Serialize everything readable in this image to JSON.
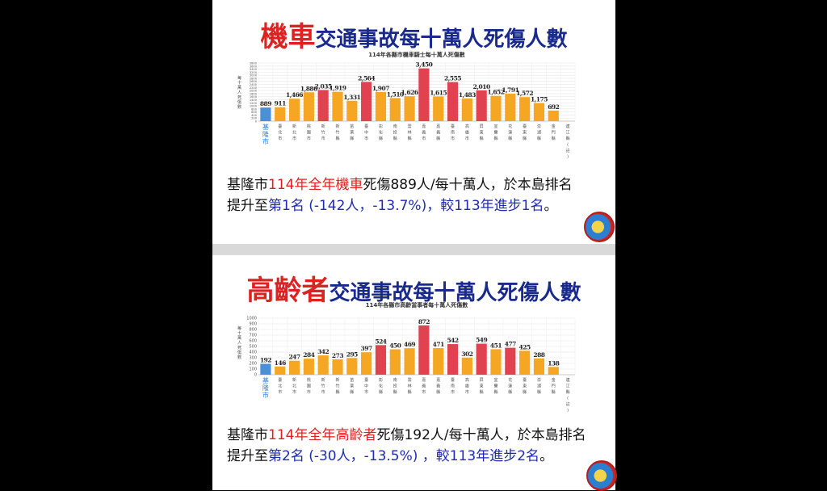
{
  "slides": [
    {
      "title_highlight": "機車",
      "title_rest": "交通事故每十萬人死傷人數",
      "summary_line1": {
        "a": "基隆市",
        "b": "114年全年機車",
        "c": "死傷889人/每十萬人，於本島排名"
      },
      "summary_line2": {
        "a": "提升至",
        "b": "第1名 (-142人，-13.7%)，較113年進步1名",
        "c": "。"
      }
    },
    {
      "title_highlight": "高齡者",
      "title_rest": "交通事故每十萬人死傷人數",
      "summary_line1": {
        "a": "基隆市",
        "b": "114年全年高齡者",
        "c": "死傷192人/每十萬人，於本島排名"
      },
      "summary_line2": {
        "a": "提升至",
        "b": "第2名 (-30人，-13.5%) ，較113年進步2名",
        "c": "。"
      }
    }
  ],
  "colors": {
    "keelung": "#4a90d9",
    "normal": "#f5a623",
    "highlight": "#e0434f"
  },
  "chart_data": [
    {
      "type": "bar",
      "title": "114年各縣市機車騎士每十萬人死傷數",
      "ylabel": "每十萬人死傷數",
      "ylim": [
        0,
        3800
      ],
      "ytick_step": 200,
      "grid": true,
      "categories": [
        "基隆市",
        "臺北市",
        "新北市",
        "桃園市",
        "新竹市",
        "新竹縣",
        "苗栗縣",
        "臺中市",
        "彰化縣",
        "南投縣",
        "雲林縣",
        "嘉義市",
        "嘉義縣",
        "臺南市",
        "高雄市",
        "屏東縣",
        "宜蘭縣",
        "花蓮縣",
        "臺東縣",
        "澎湖縣",
        "金門縣",
        "連江縣(註)"
      ],
      "values": [
        889,
        911,
        1466,
        1886,
        2035,
        1919,
        1331,
        2564,
        1907,
        1510,
        1626,
        3450,
        1615,
        2555,
        1483,
        2010,
        1652,
        1791,
        1572,
        1175,
        692,
        null
      ],
      "value_labels": [
        "889",
        "911",
        "1,466",
        "1,886",
        "2,035",
        "1,919",
        "1,331",
        "2,564",
        "1,907",
        "1,510",
        "1,626",
        "3,450",
        "1,615",
        "2,555",
        "1,483",
        "2,010",
        "1,652",
        "1,791",
        "1,572",
        "1,175",
        "692",
        ""
      ],
      "highlight": [
        "keelung",
        "normal",
        "normal",
        "normal",
        "highlight",
        "normal",
        "normal",
        "highlight",
        "normal",
        "normal",
        "normal",
        "highlight",
        "normal",
        "highlight",
        "normal",
        "highlight",
        "normal",
        "normal",
        "normal",
        "normal",
        "normal",
        "normal"
      ]
    },
    {
      "type": "bar",
      "title": "114年各縣市高齡當事者每十萬人死傷數",
      "ylabel": "每十萬人死傷數",
      "ylim": [
        0,
        1000
      ],
      "ytick_step": 100,
      "grid": true,
      "categories": [
        "基隆市",
        "臺北市",
        "新北市",
        "桃園市",
        "新竹市",
        "新竹縣",
        "苗栗縣",
        "臺中市",
        "彰化縣",
        "南投縣",
        "雲林縣",
        "嘉義市",
        "嘉義縣",
        "臺南市",
        "高雄市",
        "屏東縣",
        "宜蘭縣",
        "花蓮縣",
        "臺東縣",
        "澎湖縣",
        "金門縣",
        "連江縣(註)"
      ],
      "values": [
        192,
        146,
        247,
        284,
        342,
        273,
        295,
        397,
        524,
        450,
        469,
        872,
        471,
        542,
        302,
        549,
        451,
        477,
        425,
        288,
        138,
        null
      ],
      "value_labels": [
        "192",
        "146",
        "247",
        "284",
        "342",
        "273",
        "295",
        "397",
        "524",
        "450",
        "469",
        "872",
        "471",
        "542",
        "302",
        "549",
        "451",
        "477",
        "425",
        "288",
        "138",
        ""
      ],
      "highlight": [
        "keelung",
        "normal",
        "normal",
        "normal",
        "normal",
        "normal",
        "normal",
        "normal",
        "highlight",
        "normal",
        "normal",
        "highlight",
        "normal",
        "highlight",
        "normal",
        "highlight",
        "normal",
        "highlight",
        "normal",
        "normal",
        "normal",
        "normal"
      ]
    }
  ]
}
